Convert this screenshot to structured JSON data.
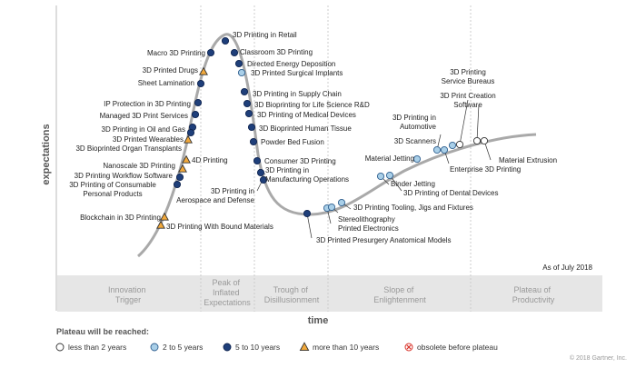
{
  "axis": {
    "y_label": "expectations",
    "x_label": "time"
  },
  "as_of": "As of July 2018",
  "copyright": "© 2018 Gartner, Inc.",
  "phases": [
    {
      "lines": [
        "Innovation",
        "Trigger"
      ]
    },
    {
      "lines": [
        "Peak of",
        "Inflated",
        "Expectations"
      ]
    },
    {
      "lines": [
        "Trough of",
        "Disillusionment"
      ]
    },
    {
      "lines": [
        "Slope of",
        "Enlightenment"
      ]
    },
    {
      "lines": [
        "Plateau of",
        "Productivity"
      ]
    }
  ],
  "legend": {
    "title": "Plateau will be reached:",
    "items": [
      {
        "label": "less than 2 years",
        "marker": "white-circle"
      },
      {
        "label": "2 to 5 years",
        "marker": "light-blue-circle"
      },
      {
        "label": "5 to 10 years",
        "marker": "dark-blue-circle"
      },
      {
        "label": "more than 10 years",
        "marker": "orange-triangle"
      },
      {
        "label": "obsolete before plateau",
        "marker": "red-x-circle"
      }
    ]
  },
  "colors": {
    "white": "#ffffff",
    "light_blue": "#a9cfe8",
    "dark_blue": "#1f3f7a",
    "orange": "#f2a93b",
    "obsolete": "#d9342b",
    "curve": "#a9a9a9",
    "band": "#e6e6e6",
    "text": "#222222",
    "muted": "#888888"
  },
  "technologies": [
    {
      "name": "3D Printing in Retail",
      "plateau": "5 to 10 years"
    },
    {
      "name": "Classroom 3D Printing",
      "plateau": "5 to 10 years"
    },
    {
      "name": "Directed Energy Deposition",
      "plateau": "5 to 10 years"
    },
    {
      "name": "3D Printed Surgical Implants",
      "plateau": "2 to 5 years"
    },
    {
      "name": "Macro 3D Printing",
      "plateau": "5 to 10 years"
    },
    {
      "name": "3D Printed Drugs",
      "plateau": "more than 10 years"
    },
    {
      "name": "Sheet Lamination",
      "plateau": "5 to 10 years"
    },
    {
      "name": "IP Protection in 3D Printing",
      "plateau": "5 to 10 years"
    },
    {
      "name": "Managed 3D Print Services",
      "plateau": "5 to 10 years"
    },
    {
      "name": "3D Printing in Oil and Gas",
      "plateau": "5 to 10 years"
    },
    {
      "name": "3D Printed Wearables",
      "plateau": "5 to 10 years"
    },
    {
      "name": "3D Bioprinted Organ Transplants",
      "plateau": "more than 10 years"
    },
    {
      "name": "4D Printing",
      "plateau": "more than 10 years"
    },
    {
      "name": "Nanoscale 3D Printing",
      "plateau": "more than 10 years"
    },
    {
      "name": "3D Printing Workflow Software",
      "plateau": "5 to 10 years"
    },
    {
      "name": "3D Printing of Consumable Personal Products",
      "plateau": "5 to 10 years"
    },
    {
      "name": "Blockchain in 3D Printing",
      "plateau": "more than 10 years"
    },
    {
      "name": "3D Printing With Bound Materials",
      "plateau": "more than 10 years"
    },
    {
      "name": "3D Printing in Supply Chain",
      "plateau": "5 to 10 years"
    },
    {
      "name": "3D Bioprinting for Life Science R&D",
      "plateau": "5 to 10 years"
    },
    {
      "name": "3D Printing of Medical Devices",
      "plateau": "5 to 10 years"
    },
    {
      "name": "3D Bioprinted Human Tissue",
      "plateau": "5 to 10 years"
    },
    {
      "name": "Powder Bed Fusion",
      "plateau": "5 to 10 years"
    },
    {
      "name": "Consumer 3D Printing",
      "plateau": "5 to 10 years"
    },
    {
      "name": "3D Printing in Manufacturing Operations",
      "plateau": "5 to 10 years"
    },
    {
      "name": "3D Printing in Aerospace and Defense",
      "plateau": "5 to 10 years"
    },
    {
      "name": "3D Printed Presurgery Anatomical Models",
      "plateau": "5 to 10 years"
    },
    {
      "name": "Stereolithography",
      "plateau": "2 to 5 years"
    },
    {
      "name": "Printed Electronics",
      "plateau": "2 to 5 years"
    },
    {
      "name": "3D Printing Tooling, Jigs and Fixtures",
      "plateau": "2 to 5 years"
    },
    {
      "name": "Binder Jetting",
      "plateau": "2 to 5 years"
    },
    {
      "name": "3D Printing of Dental Devices",
      "plateau": "2 to 5 years"
    },
    {
      "name": "Material Jetting",
      "plateau": "2 to 5 years"
    },
    {
      "name": "3D Printing in Automotive",
      "plateau": "2 to 5 years"
    },
    {
      "name": "3D Scanners",
      "plateau": "2 to 5 years"
    },
    {
      "name": "Enterprise 3D Printing",
      "plateau": "2 to 5 years"
    },
    {
      "name": "Material Extrusion",
      "plateau": "less than 2 years"
    },
    {
      "name": "3D Printing Service Bureaus",
      "plateau": "less than 2 years"
    },
    {
      "name": "3D Print Creation Software",
      "plateau": "less than 2 years"
    }
  ]
}
